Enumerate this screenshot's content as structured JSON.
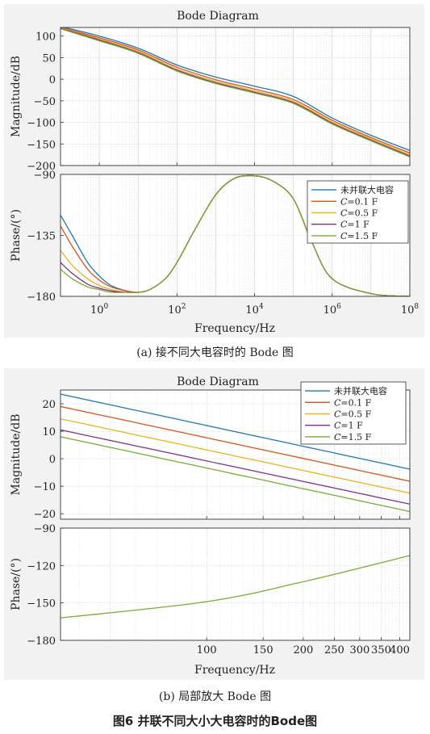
{
  "figure": {
    "caption_a": "(a) 接不同大电容时的 Bode 图",
    "caption_b": "(b) 局部放大 Bode 图",
    "title": "图6   并联不同大小大电容时的Bode图"
  },
  "legend": {
    "entries": [
      {
        "label": "未并联大电容",
        "color": "#1f77b4"
      },
      {
        "label": "C=0.1 F",
        "color": "#d95319"
      },
      {
        "label": "C=0.5 F",
        "color": "#edb120"
      },
      {
        "label": "C=1 F",
        "color": "#7e2f8e"
      },
      {
        "label": "C=1.5 F",
        "color": "#77ac30"
      }
    ]
  },
  "chart_data": [
    {
      "type": "line",
      "title": "Bode Diagram",
      "xlabel": "Frequency/Hz",
      "x_scale": "log",
      "xlim": [
        0.1,
        100000000
      ],
      "x_ticks": [
        1,
        100,
        10000,
        1000000,
        100000000
      ],
      "x_tick_labels": [
        "10^0",
        "10^2",
        "10^4",
        "10^6",
        "10^8"
      ],
      "grid": true,
      "legend_position": "lower panel top-right",
      "panels": [
        {
          "ylabel": "Magnitude/dB",
          "ylim": [
            -200,
            120
          ],
          "y_ticks": [
            100,
            50,
            0,
            -50,
            -100,
            -150,
            -200
          ],
          "x": [
            0.1,
            1,
            10,
            100,
            1000,
            10000,
            100000,
            1000000,
            10000000,
            100000000
          ],
          "series": [
            {
              "name": "未并联大电容",
              "values": [
                122,
                100,
                72,
                33,
                5,
                -16,
                -40,
                -90,
                -130,
                -165
              ]
            },
            {
              "name": "C=0.1 F",
              "values": [
                120,
                96,
                68,
                28,
                -1,
                -23,
                -47,
                -95,
                -135,
                -171
              ]
            },
            {
              "name": "C=0.5 F",
              "values": [
                119,
                93,
                65,
                24,
                -5,
                -27,
                -51,
                -99,
                -138,
                -175
              ]
            },
            {
              "name": "C=1 F",
              "values": [
                118,
                91,
                62,
                21,
                -8,
                -30,
                -54,
                -102,
                -141,
                -178
              ]
            },
            {
              "name": "C=1.5 F",
              "values": [
                117,
                89,
                60,
                19,
                -10,
                -32,
                -56,
                -104,
                -143,
                -180
              ]
            }
          ]
        },
        {
          "ylabel": "Phase/(°)",
          "ylim": [
            -180,
            -90
          ],
          "y_ticks": [
            -90,
            -135,
            -180
          ],
          "x": [
            0.1,
            0.2,
            0.5,
            1,
            2,
            5,
            10,
            20,
            50,
            100,
            300,
            1000,
            3000,
            10000,
            30000,
            100000,
            300000,
            1000000,
            10000000,
            100000000
          ],
          "series": [
            {
              "name": "未并联大电容",
              "values": [
                -120,
                -135,
                -155,
                -165,
                -172,
                -176,
                -177,
                -175,
                -167,
                -155,
                -130,
                -105,
                -93,
                -91,
                -95,
                -108,
                -140,
                -167,
                -178,
                -180
              ]
            },
            {
              "name": "C=0.1 F",
              "values": [
                -128,
                -143,
                -160,
                -168,
                -173,
                -176,
                -177,
                -175,
                -167,
                -155,
                -130,
                -105,
                -93,
                -91,
                -95,
                -108,
                -140,
                -167,
                -178,
                -180
              ]
            },
            {
              "name": "C=0.5 F",
              "values": [
                -146,
                -157,
                -167,
                -172,
                -175,
                -177,
                -177,
                -175,
                -167,
                -155,
                -130,
                -105,
                -93,
                -91,
                -95,
                -108,
                -140,
                -167,
                -178,
                -180
              ]
            },
            {
              "name": "C=1 F",
              "values": [
                -155,
                -163,
                -171,
                -174,
                -176,
                -177,
                -177,
                -175,
                -167,
                -155,
                -130,
                -105,
                -93,
                -91,
                -95,
                -108,
                -140,
                -167,
                -178,
                -180
              ]
            },
            {
              "name": "C=1.5 F",
              "values": [
                -160,
                -167,
                -173,
                -175,
                -177,
                -177,
                -177,
                -175,
                -167,
                -155,
                -130,
                -105,
                -93,
                -91,
                -95,
                -108,
                -140,
                -167,
                -178,
                -180
              ]
            }
          ]
        }
      ]
    },
    {
      "type": "line",
      "title": "Bode Diagram",
      "xlabel": "Frequency/Hz",
      "x_scale": "log",
      "xlim": [
        35,
        430
      ],
      "x_ticks": [
        100,
        150,
        200,
        250,
        300,
        350,
        400
      ],
      "x_tick_labels": [
        "100",
        "150",
        "200",
        "250",
        "300",
        "350",
        "400"
      ],
      "grid": true,
      "legend_position": "top-right",
      "panels": [
        {
          "ylabel": "Magnitude/dB",
          "ylim": [
            -22,
            25
          ],
          "y_ticks": [
            20,
            10,
            0,
            -10,
            -20
          ],
          "x": [
            35,
            430
          ],
          "series": [
            {
              "name": "未并联大电容",
              "values": [
                23.5,
                -3.8
              ]
            },
            {
              "name": "C=0.1 F",
              "values": [
                19.0,
                -8.2
              ]
            },
            {
              "name": "C=0.5 F",
              "values": [
                14.5,
                -12.5
              ]
            },
            {
              "name": "C=1 F",
              "values": [
                10.5,
                -16.5
              ]
            },
            {
              "name": "C=1.5 F",
              "values": [
                8.0,
                -19.2
              ]
            }
          ]
        },
        {
          "ylabel": "Phase/(°)",
          "ylim": [
            -180,
            -90
          ],
          "y_ticks": [
            -90,
            -120,
            -150,
            -180
          ],
          "x": [
            35,
            100,
            200,
            430
          ],
          "series": [
            {
              "name": "C=1.5 F",
              "values": [
                -162,
                -149,
                -133,
                -112
              ]
            }
          ]
        }
      ]
    }
  ]
}
